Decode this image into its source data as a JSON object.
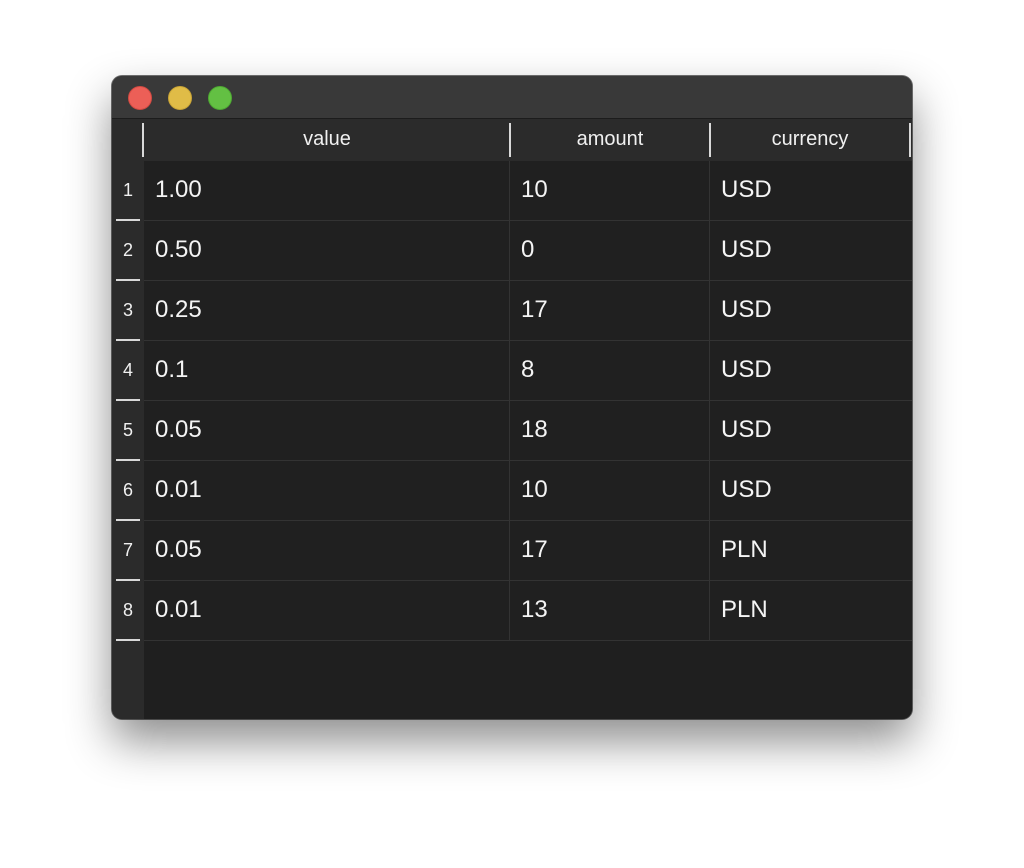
{
  "window": {
    "controls": [
      "close",
      "minimize",
      "maximize"
    ],
    "colors": {
      "close": "#ec5f57",
      "minimize": "#e0bc47",
      "maximize": "#63c043",
      "background": "#1f1f1f",
      "header_background": "#2b2b2b",
      "text": "#f0f0f0"
    }
  },
  "table": {
    "columns": [
      "value",
      "amount",
      "currency"
    ],
    "rows": [
      {
        "index": "1",
        "value": "1.00",
        "amount": "10",
        "currency": "USD"
      },
      {
        "index": "2",
        "value": "0.50",
        "amount": "0",
        "currency": "USD"
      },
      {
        "index": "3",
        "value": "0.25",
        "amount": "17",
        "currency": "USD"
      },
      {
        "index": "4",
        "value": "0.1",
        "amount": "8",
        "currency": "USD"
      },
      {
        "index": "5",
        "value": "0.05",
        "amount": "18",
        "currency": "USD"
      },
      {
        "index": "6",
        "value": "0.01",
        "amount": "10",
        "currency": "USD"
      },
      {
        "index": "7",
        "value": "0.05",
        "amount": "17",
        "currency": "PLN"
      },
      {
        "index": "8",
        "value": "0.01",
        "amount": "13",
        "currency": "PLN"
      }
    ]
  }
}
